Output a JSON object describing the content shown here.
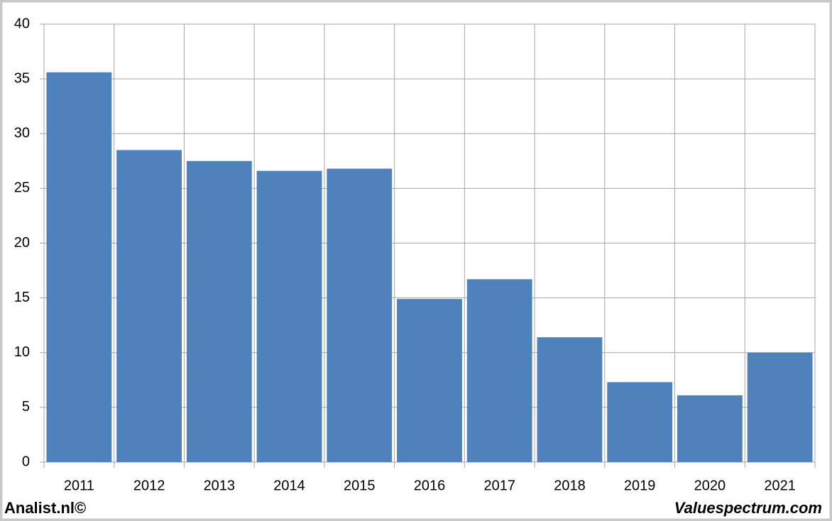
{
  "chart_data": {
    "type": "bar",
    "categories": [
      "2011",
      "2012",
      "2013",
      "2014",
      "2015",
      "2016",
      "2017",
      "2018",
      "2019",
      "2020",
      "2021"
    ],
    "values": [
      35.6,
      28.5,
      27.5,
      26.6,
      26.8,
      14.9,
      16.7,
      11.4,
      7.3,
      6.1,
      10.0
    ],
    "color": "#4f81bd",
    "ylim": [
      0,
      40
    ],
    "yticks": [
      0,
      5,
      10,
      15,
      20,
      25,
      30,
      35,
      40
    ],
    "grid": true,
    "credits": [
      "Analist.nl©",
      "Valuespectrum.com"
    ]
  }
}
